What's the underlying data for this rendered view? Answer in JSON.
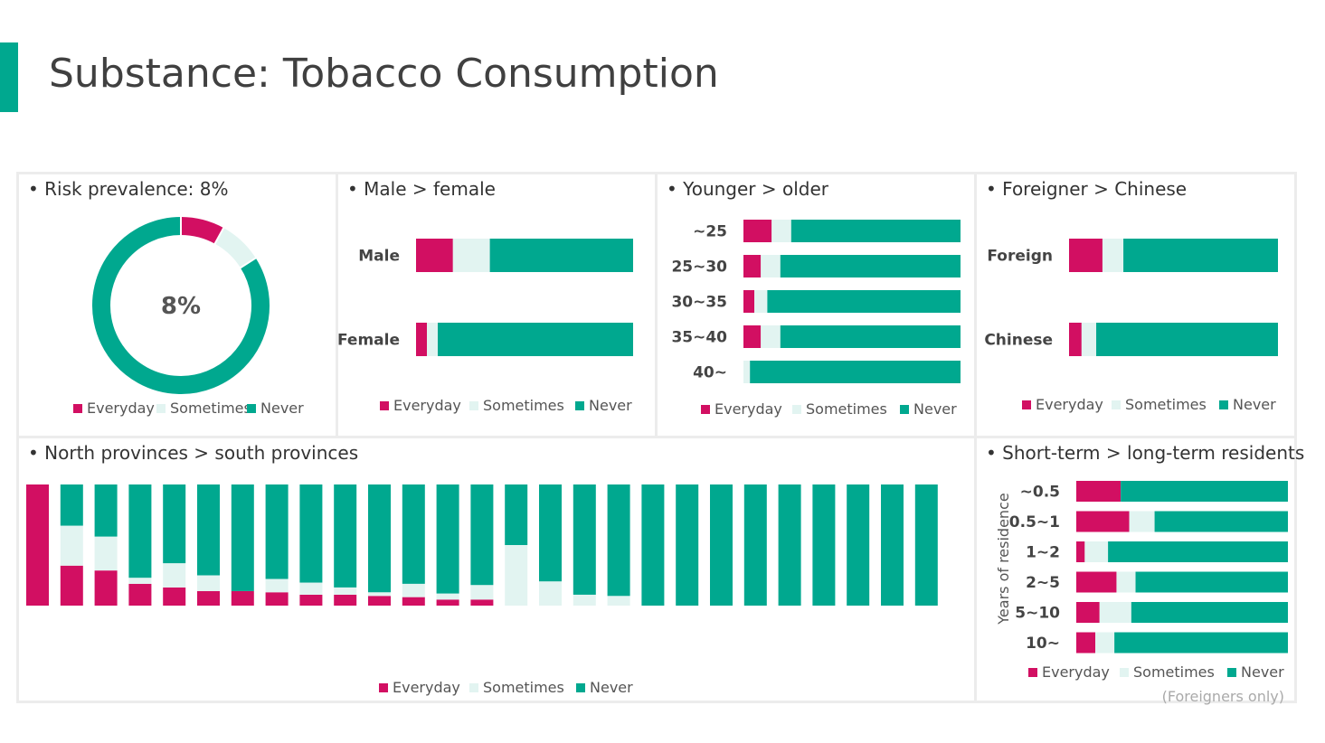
{
  "title": "Substance: Tobacco Consumption",
  "colors": {
    "everyday": "#D20F62",
    "sometimes": "#E2F4F1",
    "never": "#00A88F"
  },
  "legend": [
    "Everyday",
    "Sometimes",
    "Never"
  ],
  "chart_data": [
    {
      "id": "prevalence",
      "type": "pie",
      "title": "• Risk prevalence: 8%",
      "center_label": "8%",
      "labels": [
        "Everyday",
        "Sometimes",
        "Never"
      ],
      "values": [
        8,
        8,
        84
      ]
    },
    {
      "id": "gender",
      "type": "bar",
      "stacked": true,
      "horizontal": true,
      "title": "• Male > female",
      "categories": [
        "Male",
        "Female"
      ],
      "series": [
        {
          "name": "Everyday",
          "values": [
            17,
            5
          ]
        },
        {
          "name": "Sometimes",
          "values": [
            17,
            5
          ]
        },
        {
          "name": "Never",
          "values": [
            66,
            90
          ]
        }
      ]
    },
    {
      "id": "age",
      "type": "bar",
      "stacked": true,
      "horizontal": true,
      "title": "• Younger > older",
      "categories": [
        "~25",
        "25~30",
        "30~35",
        "35~40",
        "40~"
      ],
      "series": [
        {
          "name": "Everyday",
          "values": [
            13,
            8,
            5,
            8,
            0
          ]
        },
        {
          "name": "Sometimes",
          "values": [
            9,
            9,
            6,
            9,
            3
          ]
        },
        {
          "name": "Never",
          "values": [
            78,
            83,
            89,
            83,
            97
          ]
        }
      ]
    },
    {
      "id": "nationality",
      "type": "bar",
      "stacked": true,
      "horizontal": true,
      "title": "• Foreigner > Chinese",
      "categories": [
        "Foreign",
        "Chinese"
      ],
      "series": [
        {
          "name": "Everyday",
          "values": [
            16,
            6
          ]
        },
        {
          "name": "Sometimes",
          "values": [
            10,
            7
          ]
        },
        {
          "name": "Never",
          "values": [
            74,
            87
          ]
        }
      ]
    },
    {
      "id": "provinces",
      "type": "bar",
      "stacked": true,
      "title": "• North provinces > south provinces",
      "categories": [
        "",
        "",
        "",
        "",
        "",
        "",
        "",
        "",
        "",
        "",
        "",
        "",
        "",
        "",
        "",
        "",
        "",
        "",
        "",
        "",
        "",
        "",
        "",
        "",
        "",
        "",
        ""
      ],
      "series": [
        {
          "name": "Everyday",
          "values": [
            100,
            33,
            29,
            18,
            15,
            12,
            12,
            11,
            9,
            9,
            8,
            7,
            5,
            5,
            0,
            0,
            0,
            0,
            0,
            0,
            0,
            0,
            0,
            0,
            0,
            0,
            0
          ]
        },
        {
          "name": "Sometimes",
          "values": [
            0,
            33,
            28,
            5,
            20,
            13,
            0,
            11,
            10,
            6,
            3,
            11,
            5,
            12,
            50,
            20,
            9,
            8,
            0,
            0,
            0,
            0,
            0,
            0,
            0,
            0,
            0
          ]
        },
        {
          "name": "Never",
          "values": [
            0,
            34,
            43,
            77,
            65,
            75,
            88,
            78,
            81,
            85,
            89,
            82,
            90,
            83,
            50,
            80,
            91,
            92,
            100,
            100,
            100,
            100,
            100,
            100,
            100,
            100,
            100
          ]
        }
      ]
    },
    {
      "id": "residence",
      "type": "bar",
      "stacked": true,
      "horizontal": true,
      "title": "• Short-term > long-term residents",
      "ylabel": "Years of residence",
      "note": "(Foreigners only)",
      "categories": [
        "~0.5",
        "0.5~1",
        "1~2",
        "2~5",
        "5~10",
        "10~"
      ],
      "series": [
        {
          "name": "Everyday",
          "values": [
            21,
            25,
            4,
            19,
            11,
            9
          ]
        },
        {
          "name": "Sometimes",
          "values": [
            0,
            12,
            11,
            9,
            15,
            9
          ]
        },
        {
          "name": "Never",
          "values": [
            79,
            63,
            85,
            72,
            74,
            82
          ]
        }
      ]
    }
  ]
}
